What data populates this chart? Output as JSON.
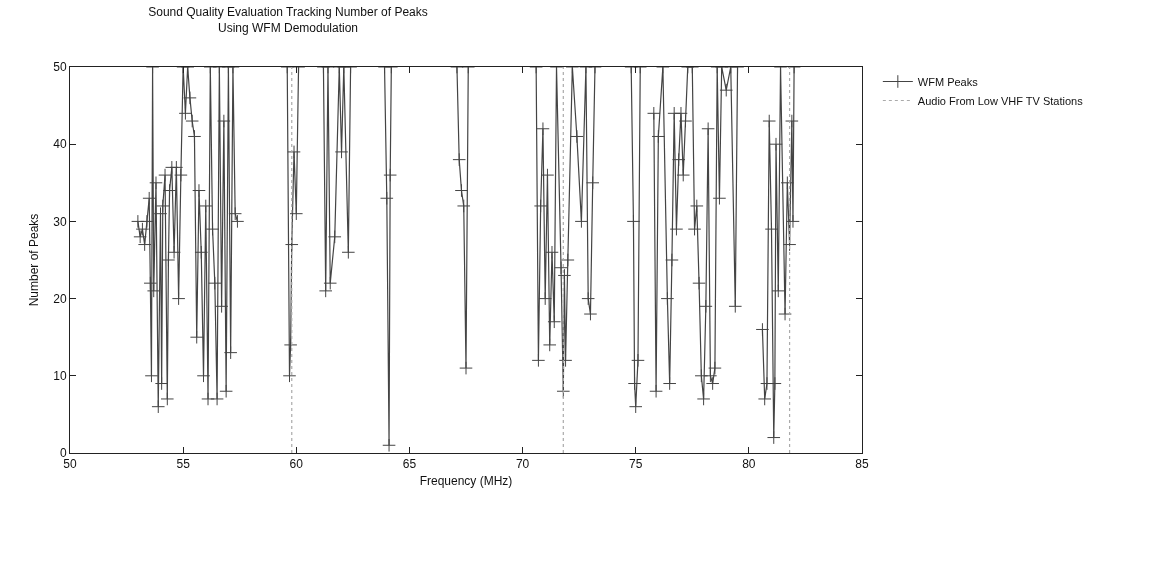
{
  "chart_data": {
    "type": "line",
    "title": "Sound Quality Evaluation Tracking Number of Peaks\nUsing WFM Demodulation",
    "xlabel": "Frequency (MHz)",
    "ylabel": "Number of Peaks",
    "xlim": [
      50,
      85
    ],
    "xticks": [
      50,
      55,
      60,
      65,
      70,
      75,
      80,
      85
    ],
    "ylim": [
      0,
      50
    ],
    "yticks": [
      0,
      10,
      20,
      30,
      40,
      50
    ],
    "legend": "top right",
    "series": [
      {
        "name": "WFM Peaks",
        "color": "#444444",
        "marker": "cross",
        "line_style": "solid",
        "x": [
          53.0,
          53.1,
          53.2,
          53.3,
          53.4,
          53.5,
          53.55,
          53.6,
          53.65,
          53.7,
          53.8,
          53.9,
          54.0,
          54.05,
          54.1,
          54.2,
          54.3,
          54.35,
          54.4,
          54.5,
          54.6,
          54.7,
          54.8,
          54.9,
          55.0,
          55.1,
          55.2,
          55.3,
          55.4,
          55.5,
          55.6,
          55.7,
          55.8,
          55.9,
          56.0,
          56.1,
          56.2,
          56.3,
          56.4,
          56.5,
          56.6,
          56.7,
          56.8,
          56.9,
          57.0,
          57.1,
          57.2,
          57.3,
          57.4,
          58.5,
          59.6,
          59.7,
          59.75,
          59.8,
          59.9,
          60.0,
          60.1,
          60.6,
          61.2,
          61.3,
          61.4,
          61.5,
          61.7,
          61.9,
          62.0,
          62.1,
          62.3,
          62.4,
          63.0,
          63.9,
          64.0,
          64.1,
          64.15,
          64.2,
          65.5,
          67.1,
          67.2,
          67.3,
          67.4,
          67.5,
          67.6,
          69.0,
          70.6,
          70.7,
          70.8,
          70.9,
          71.0,
          71.1,
          71.2,
          71.3,
          71.4,
          71.5,
          71.7,
          71.8,
          71.85,
          71.9,
          72.0,
          72.2,
          72.4,
          72.6,
          72.8,
          72.9,
          73.0,
          73.1,
          73.2,
          74.0,
          74.8,
          74.9,
          74.95,
          75.0,
          75.1,
          75.2,
          75.5,
          75.8,
          75.9,
          76.0,
          76.2,
          76.4,
          76.5,
          76.6,
          76.7,
          76.8,
          76.9,
          77.0,
          77.1,
          77.2,
          77.3,
          77.5,
          77.6,
          77.7,
          77.8,
          77.9,
          78.0,
          78.1,
          78.2,
          78.3,
          78.4,
          78.5,
          78.6,
          78.7,
          78.8,
          79.0,
          79.2,
          79.4,
          79.5,
          80.0,
          80.6,
          80.7,
          80.8,
          80.9,
          81.0,
          81.1,
          81.15,
          81.2,
          81.3,
          81.4,
          81.6,
          81.7,
          81.8,
          81.9,
          81.95,
          82.0
        ],
        "values": [
          30,
          28,
          29,
          27,
          30,
          33,
          22,
          10,
          50,
          21,
          35,
          6,
          31,
          9,
          32,
          36,
          7,
          25,
          34,
          37,
          26,
          37,
          20,
          36,
          50,
          44,
          50,
          46,
          43,
          41,
          15,
          34,
          26,
          10,
          32,
          7,
          50,
          29,
          22,
          7,
          50,
          19,
          43,
          8,
          50,
          13,
          50,
          31,
          30,
          null,
          50,
          10,
          14,
          27,
          39,
          31,
          50,
          null,
          50,
          21,
          50,
          22,
          28,
          50,
          39,
          50,
          26,
          50,
          null,
          50,
          33,
          1,
          36,
          50,
          null,
          50,
          38,
          34,
          32,
          11,
          50,
          null,
          50,
          12,
          32,
          42,
          20,
          36,
          14,
          26,
          17,
          50,
          24,
          8,
          23,
          12,
          25,
          50,
          41,
          30,
          50,
          20,
          18,
          35,
          50,
          null,
          50,
          30,
          9,
          6,
          12,
          50,
          null,
          44,
          8,
          41,
          50,
          20,
          9,
          25,
          44,
          29,
          38,
          44,
          36,
          43,
          50,
          50,
          29,
          32,
          22,
          10,
          7,
          19,
          42,
          10,
          9,
          11,
          50,
          33,
          50,
          47,
          50,
          19,
          50,
          null,
          16,
          7,
          9,
          43,
          29,
          2,
          9,
          40,
          21,
          50,
          18,
          35,
          27,
          43,
          30,
          50
        ]
      },
      {
        "name": "Audio From Low VHF TV Stations",
        "color": "#aaaaaa",
        "marker": "none",
        "line_style": "dotted",
        "x": [
          59.8,
          59.8
        ],
        "values": [
          0,
          50
        ]
      },
      {
        "color": "#aaaaaa",
        "marker": "none",
        "line_style": "dotted",
        "x": [
          71.8,
          71.8
        ],
        "values": [
          0,
          50
        ]
      },
      {
        "color": "#aaaaaa",
        "marker": "none",
        "line_style": "dotted",
        "x": [
          81.8,
          81.8
        ],
        "values": [
          0,
          50
        ]
      }
    ]
  }
}
